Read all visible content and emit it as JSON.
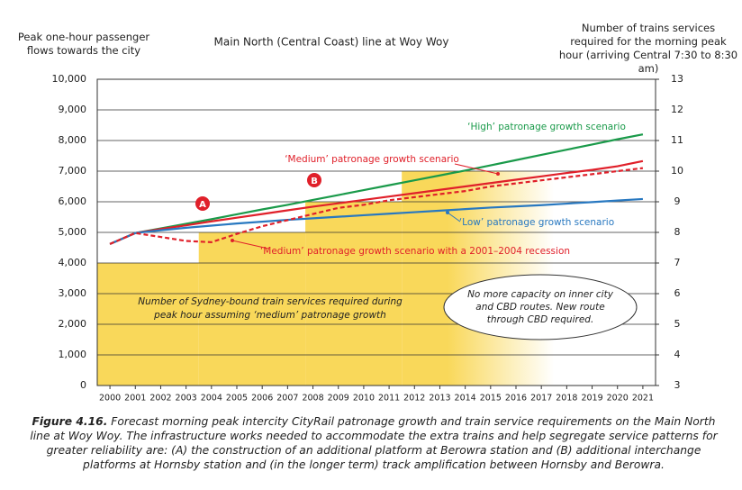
{
  "chart_data": {
    "type": "line",
    "title": "Main North (Central Coast) line at Woy Woy",
    "y_label": "Peak one-hour passenger flows towards the city",
    "y2_label": "Number of trains services required for the morning peak hour (arriving Central 7:30 to 8:30 am)",
    "x": [
      2000,
      2001,
      2002,
      2003,
      2004,
      2005,
      2006,
      2007,
      2008,
      2009,
      2010,
      2011,
      2012,
      2013,
      2014,
      2015,
      2016,
      2017,
      2018,
      2019,
      2020,
      2021
    ],
    "xlim": [
      1999.5,
      2021.5
    ],
    "xticks": [
      2000,
      2001,
      2002,
      2003,
      2004,
      2005,
      2006,
      2007,
      2008,
      2009,
      2010,
      2011,
      2012,
      2013,
      2014,
      2015,
      2016,
      2017,
      2018,
      2019,
      2020,
      2021
    ],
    "ylim": [
      0,
      10000
    ],
    "yticks": [
      0,
      {
        "value": 1000,
        "label": "1,000"
      },
      {
        "value": 2000,
        "label": "2,000"
      },
      {
        "value": 3000,
        "label": "3,000"
      },
      {
        "value": 4000,
        "label": "4,000"
      },
      {
        "value": 5000,
        "label": "5,000"
      },
      {
        "value": 6000,
        "label": "6,000"
      },
      {
        "value": 7000,
        "label": "7,000"
      },
      {
        "value": 8000,
        "label": "8,000"
      },
      {
        "value": 9000,
        "label": "9,000"
      },
      {
        "value": 10000,
        "label": "10,000"
      }
    ],
    "y2lim": [
      3,
      13
    ],
    "y2ticks": [
      3,
      4,
      5,
      6,
      7,
      8,
      9,
      10,
      11,
      12,
      13
    ],
    "grid": true,
    "series": [
      {
        "name": "‘High’ patronage growth scenario",
        "color": "#1a9a4a",
        "values": [
          4620,
          4980,
          5130,
          5280,
          5430,
          5590,
          5750,
          5900,
          6060,
          6220,
          6380,
          6540,
          6700,
          6860,
          7020,
          7190,
          7360,
          7530,
          7700,
          7870,
          8040,
          8200
        ]
      },
      {
        "name": "‘Medium’ patronage growth scenario",
        "color": "#e0202a",
        "values": [
          4620,
          4980,
          5110,
          5230,
          5360,
          5480,
          5600,
          5720,
          5840,
          5950,
          6060,
          6170,
          6280,
          6390,
          6500,
          6610,
          6720,
          6830,
          6940,
          7040,
          7160,
          7330
        ]
      },
      {
        "name": "‘Low’ patronage growth scenario",
        "color": "#2878c0",
        "values": [
          4620,
          4980,
          5070,
          5150,
          5220,
          5290,
          5350,
          5410,
          5460,
          5510,
          5560,
          5610,
          5660,
          5710,
          5760,
          5810,
          5850,
          5890,
          5940,
          5990,
          6040,
          6090
        ]
      },
      {
        "name": "‘Medium’ patronage growth scenario with a 2001–2004 recession",
        "color": "#e0202a",
        "dashed": true,
        "values": [
          4620,
          4980,
          4850,
          4720,
          4680,
          4950,
          5200,
          5400,
          5600,
          5800,
          5900,
          6050,
          6150,
          6250,
          6350,
          6500,
          6600,
          6700,
          6800,
          6900,
          7000,
          7100
        ]
      }
    ],
    "train_services": {
      "name": "Number of Sydney-bound train services required during peak hour assuming ‘medium’ patronage growth",
      "color": "#f9d85a",
      "axis": "y2",
      "bins": [
        1999.5,
        2003.5,
        2007.7,
        2011.5,
        2017.5
      ],
      "values": [
        7,
        8,
        9,
        10
      ]
    },
    "markers": [
      "A",
      "B"
    ],
    "note": "No more capacity on inner city and CBD routes. New route through CBD required.",
    "caption_label": "Figure 4.16.",
    "caption": "Forecast morning peak intercity CityRail patronage growth and train service requirements on the Main North line at Woy Woy. The infrastructure works needed to accommodate the extra trains and help segregate service patterns for greater reliability are: (A) the construction of an additional platform at Berowra station and (B) additional interchange platforms at Hornsby station and (in the longer term) track amplification between Hornsby and Berowra."
  }
}
